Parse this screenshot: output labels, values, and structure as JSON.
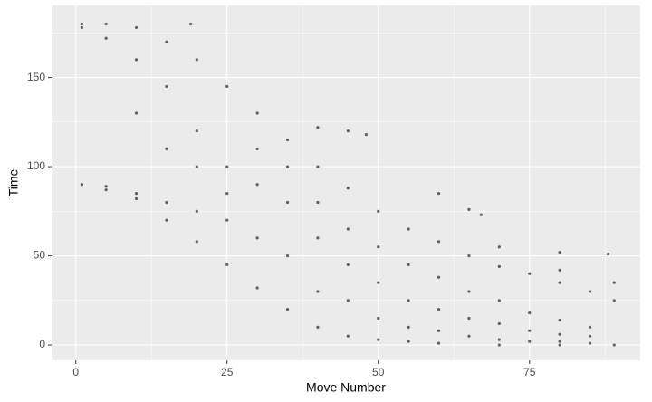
{
  "chart_data": {
    "type": "scatter",
    "x_label": "Move Number",
    "y_label": "Time",
    "xlim": [
      -4.0,
      93.3
    ],
    "ylim": [
      -8.6,
      190.4
    ],
    "xticks": [
      0,
      25,
      50,
      75
    ],
    "yticks": [
      0,
      50,
      100,
      150
    ],
    "x_minor_grid": [
      12.5,
      37.5,
      62.5,
      87.5
    ],
    "y_minor_grid": [
      25,
      75,
      125,
      175
    ],
    "grid": true,
    "color": "#000000",
    "x": [
      1,
      5,
      10,
      15,
      20,
      25,
      30,
      35,
      40,
      45,
      50,
      55,
      60,
      65,
      70,
      75,
      80,
      85,
      89,
      1,
      5,
      10,
      15,
      20,
      25,
      30,
      35,
      40,
      45,
      50,
      55,
      60,
      70,
      80,
      89,
      1,
      5,
      10,
      15,
      20,
      25,
      5,
      10,
      15,
      20,
      25,
      40,
      45,
      48,
      60,
      65,
      67,
      70,
      80,
      88,
      80,
      89,
      30,
      30,
      30,
      35,
      35,
      35,
      40,
      40,
      40,
      45,
      45,
      45,
      50,
      50,
      50,
      55,
      55,
      55,
      60,
      60,
      60,
      65,
      65,
      65,
      70,
      70,
      70,
      75,
      75,
      75,
      80,
      80,
      80,
      85,
      85,
      85,
      20,
      25,
      15,
      10,
      19
    ],
    "y": [
      180,
      180,
      178,
      170,
      160,
      145,
      130,
      115,
      100,
      88,
      75,
      65,
      58,
      50,
      44,
      40,
      35,
      30,
      25,
      90,
      87,
      82,
      70,
      58,
      45,
      32,
      20,
      10,
      5,
      3,
      2,
      1,
      0,
      0,
      0,
      178,
      172,
      160,
      145,
      120,
      100,
      89,
      85,
      80,
      75,
      70,
      122,
      120,
      118,
      85,
      76,
      73,
      55,
      52,
      51,
      42,
      35,
      60,
      90,
      110,
      50,
      80,
      100,
      30,
      60,
      80,
      25,
      45,
      65,
      15,
      35,
      55,
      10,
      25,
      45,
      8,
      20,
      38,
      5,
      15,
      30,
      3,
      12,
      25,
      2,
      8,
      18,
      2,
      6,
      14,
      1,
      5,
      10,
      100,
      85,
      110,
      130,
      180
    ]
  }
}
